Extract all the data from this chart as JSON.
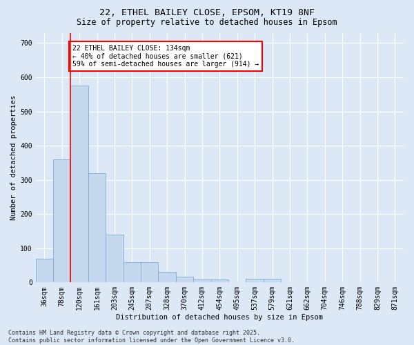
{
  "title1": "22, ETHEL BAILEY CLOSE, EPSOM, KT19 8NF",
  "title2": "Size of property relative to detached houses in Epsom",
  "xlabel": "Distribution of detached houses by size in Epsom",
  "ylabel": "Number of detached properties",
  "categories": [
    "36sqm",
    "78sqm",
    "120sqm",
    "161sqm",
    "203sqm",
    "245sqm",
    "287sqm",
    "328sqm",
    "370sqm",
    "412sqm",
    "454sqm",
    "495sqm",
    "537sqm",
    "579sqm",
    "621sqm",
    "662sqm",
    "704sqm",
    "746sqm",
    "788sqm",
    "829sqm",
    "871sqm"
  ],
  "values": [
    70,
    360,
    575,
    320,
    140,
    60,
    60,
    30,
    17,
    8,
    8,
    0,
    10,
    10,
    0,
    0,
    0,
    0,
    0,
    0,
    0
  ],
  "bar_color": "#c5d8ee",
  "bar_edge_color": "#7aafd4",
  "red_line_index": 2,
  "annotation_text": "22 ETHEL BAILEY CLOSE: 134sqm\n← 40% of detached houses are smaller (621)\n59% of semi-detached houses are larger (914) →",
  "annotation_box_color": "white",
  "annotation_box_edge_color": "red",
  "footer_text": "Contains HM Land Registry data © Crown copyright and database right 2025.\nContains public sector information licensed under the Open Government Licence v3.0.",
  "ylim": [
    0,
    730
  ],
  "yticks": [
    0,
    100,
    200,
    300,
    400,
    500,
    600,
    700
  ],
  "background_color": "#dce8f5",
  "grid_color": "#ffffff",
  "title_fontsize": 9.5,
  "subtitle_fontsize": 8.5,
  "axis_label_fontsize": 7.5,
  "tick_fontsize": 7,
  "annotation_fontsize": 7,
  "footer_fontsize": 6
}
